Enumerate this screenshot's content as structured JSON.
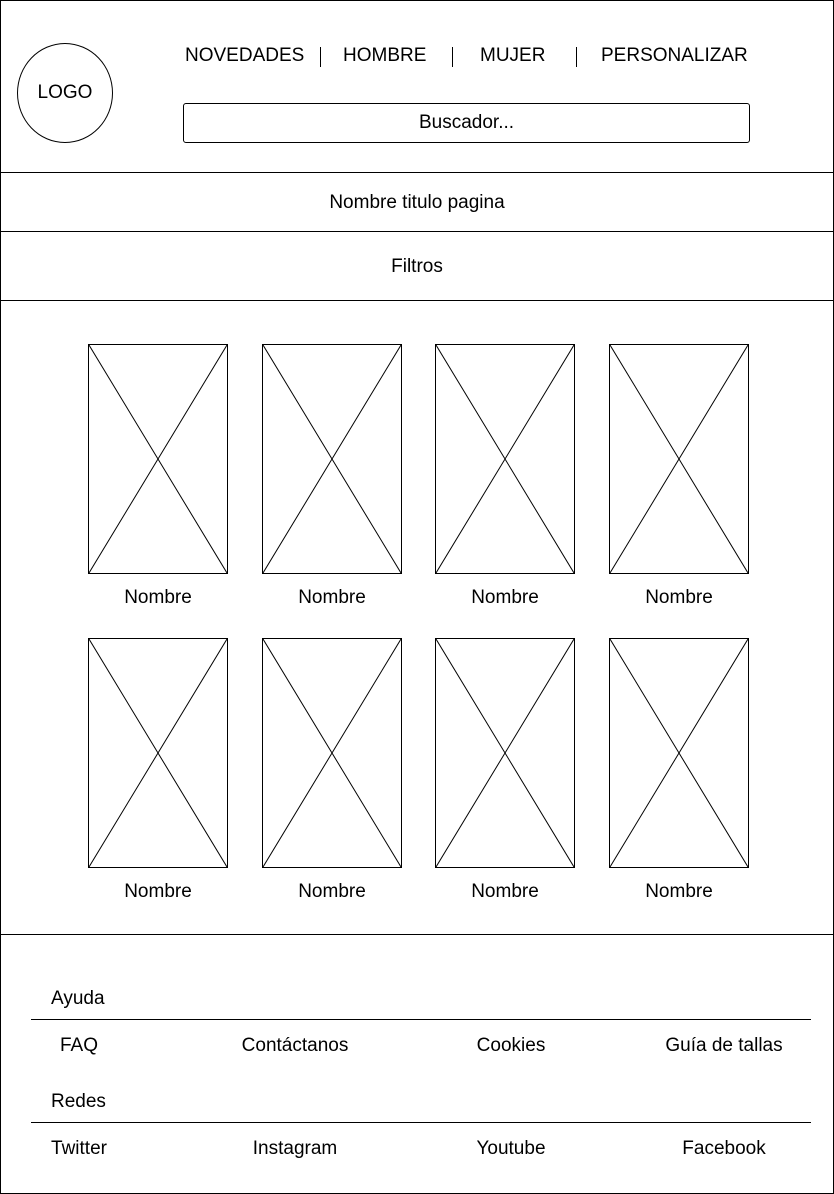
{
  "header": {
    "logo": "LOGO",
    "nav": [
      "NOVEDADES",
      "HOMBRE",
      "MUJER",
      "PERSONALIZAR"
    ],
    "search_placeholder": "Buscador..."
  },
  "page_title": "Nombre titulo pagina",
  "filters_label": "Filtros",
  "products": [
    {
      "name": "Nombre"
    },
    {
      "name": "Nombre"
    },
    {
      "name": "Nombre"
    },
    {
      "name": "Nombre"
    },
    {
      "name": "Nombre"
    },
    {
      "name": "Nombre"
    },
    {
      "name": "Nombre"
    },
    {
      "name": "Nombre"
    }
  ],
  "footer": {
    "help_title": "Ayuda",
    "help_links": [
      "FAQ",
      "Contáctanos",
      "Cookies",
      "Guía de tallas"
    ],
    "social_title": "Redes",
    "social_links": [
      "Twitter",
      "Instagram",
      "Youtube",
      "Facebook"
    ]
  }
}
